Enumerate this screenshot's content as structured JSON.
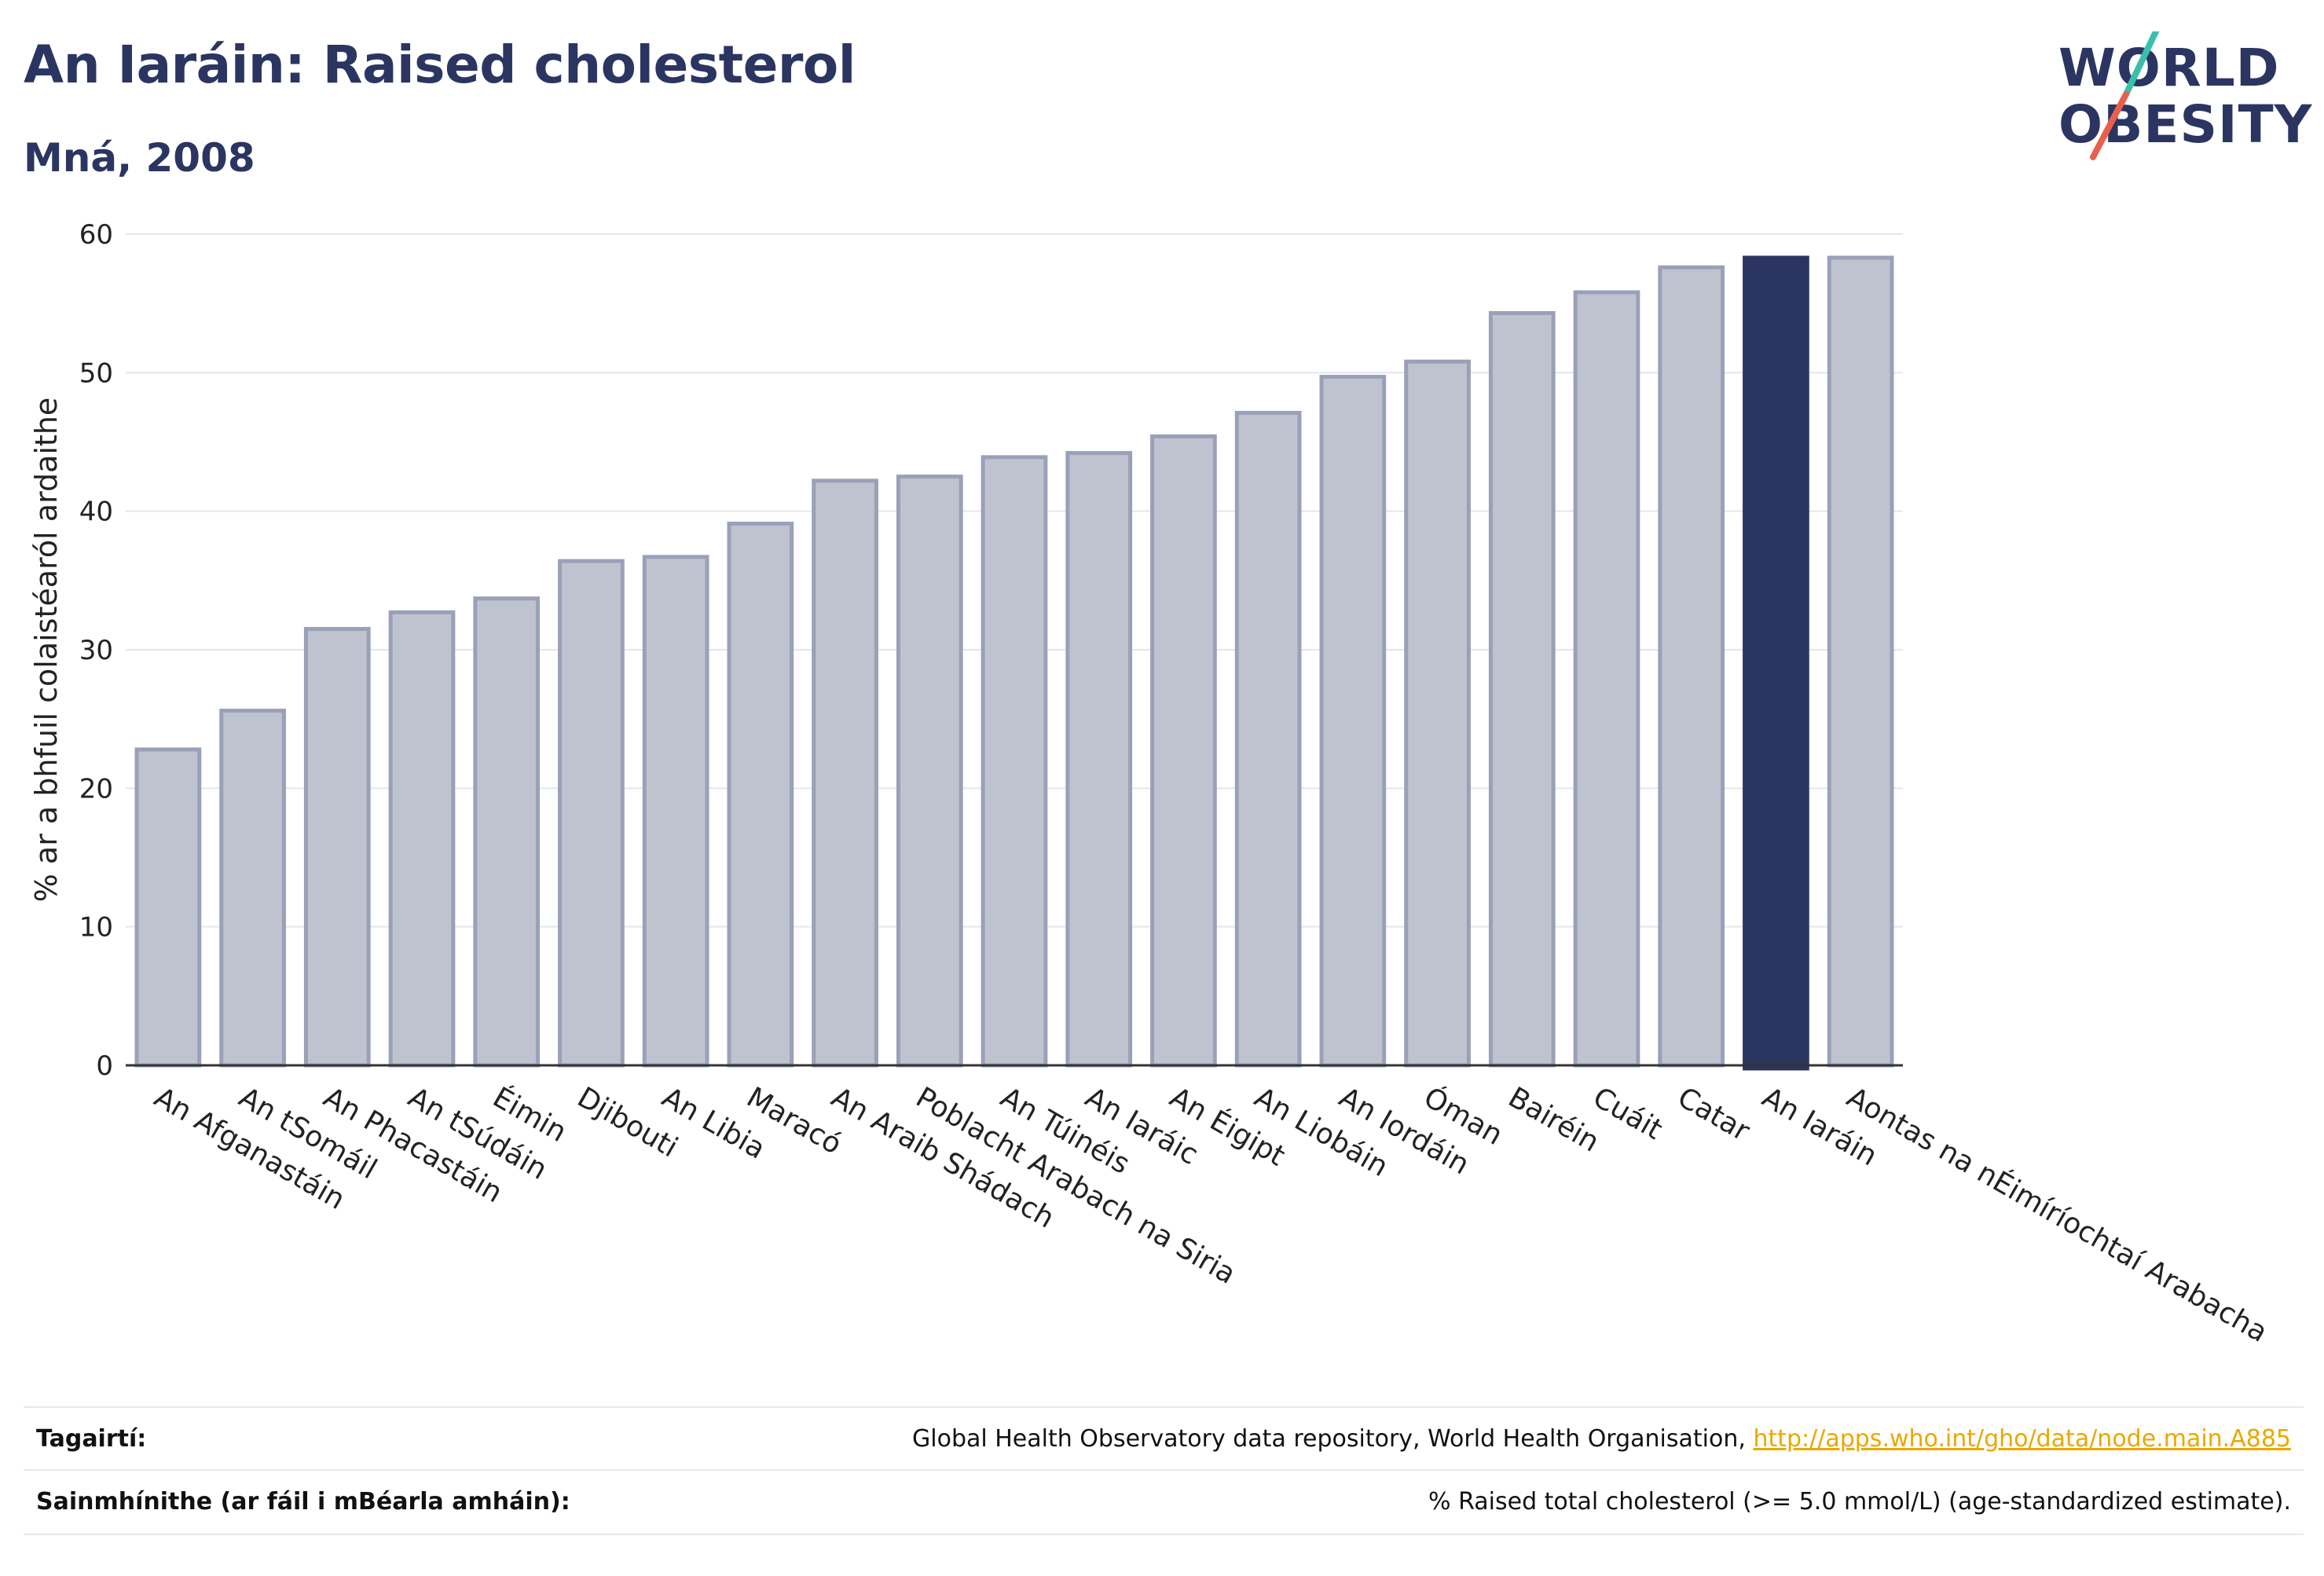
{
  "header": {
    "title": "An Iaráin: Raised cholesterol",
    "subtitle": "Mná, 2008"
  },
  "logo": {
    "line1": "WORLD",
    "line2": "OBESITY",
    "accent_teal": "#3bbfad",
    "accent_red": "#e8604c"
  },
  "chart_data": {
    "type": "bar",
    "title": "An Iaráin: Raised cholesterol",
    "subtitle": "Mná, 2008",
    "ylabel": "% ar a bhfuil colaistéaról ardaithe",
    "xlabel": "",
    "ylim": [
      0,
      60
    ],
    "yticks": [
      0,
      10,
      20,
      30,
      40,
      50,
      60
    ],
    "grid": true,
    "highlight": "An Iaráin",
    "colors": {
      "bar": "#bfc3d0",
      "bar_edge": "#9aa0b8",
      "highlight": "#2b3561"
    },
    "categories": [
      "An Afganastáin",
      "An tSomáil",
      "An Phacastáin",
      "An tSúdáin",
      "Éimin",
      "Djibouti",
      "An Libia",
      "Maracó",
      "An Araib Shádach",
      "Poblacht Arabach na Siria",
      "An Túinéis",
      "An Iaráic",
      "An Éigipt",
      "An Liobáin",
      "An Iordáin",
      "Óman",
      "Bairéin",
      "Cuáit",
      "Catar",
      "An Iaráin",
      "Aontas na nÉimíríochtaí Arabacha"
    ],
    "values": [
      22.8,
      25.6,
      31.5,
      32.7,
      33.7,
      36.4,
      36.7,
      39.1,
      42.2,
      42.5,
      43.9,
      44.2,
      45.4,
      47.1,
      49.7,
      50.8,
      54.3,
      55.8,
      57.6,
      58.3,
      58.3
    ]
  },
  "footer": {
    "references_label": "Tagairtí:",
    "references_text": "Global Health Observatory data repository, World Health Organisation, ",
    "references_link": "http://apps.who.int/gho/data/node.main.A885",
    "definitions_label": "Sainmhínithe (ar fáil i mBéarla amháin):",
    "definitions_text": "% Raised total cholesterol (>= 5.0 mmol/L) (age-standardized estimate)."
  }
}
